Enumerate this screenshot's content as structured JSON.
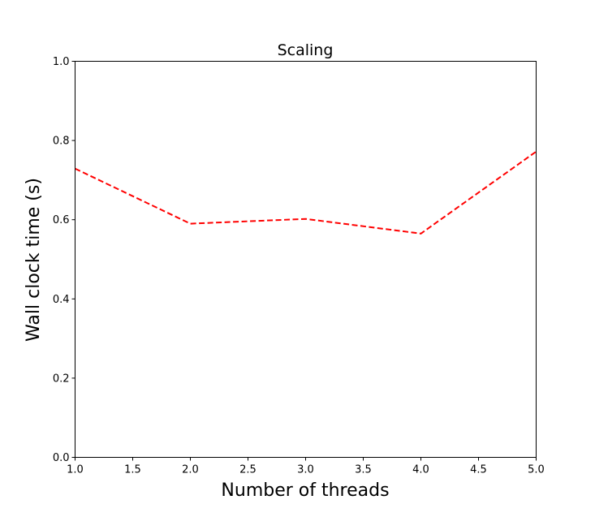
{
  "chart_data": {
    "type": "line",
    "title": "Scaling",
    "xlabel": "Number of threads",
    "ylabel": "Wall clock time (s)",
    "xlim": [
      1.0,
      5.0
    ],
    "ylim": [
      0.0,
      1.0
    ],
    "xticks": [
      "1.0",
      "1.5",
      "2.0",
      "2.5",
      "3.0",
      "3.5",
      "4.0",
      "4.5",
      "5.0"
    ],
    "yticks": [
      "0.0",
      "0.2",
      "0.4",
      "0.6",
      "0.8",
      "1.0"
    ],
    "grid": false,
    "series": [
      {
        "x": [
          1,
          2,
          3,
          4,
          5
        ],
        "y": [
          0.729,
          0.59,
          0.602,
          0.565,
          0.772
        ],
        "color": "#ff0000",
        "linestyle": "dashed"
      }
    ]
  }
}
